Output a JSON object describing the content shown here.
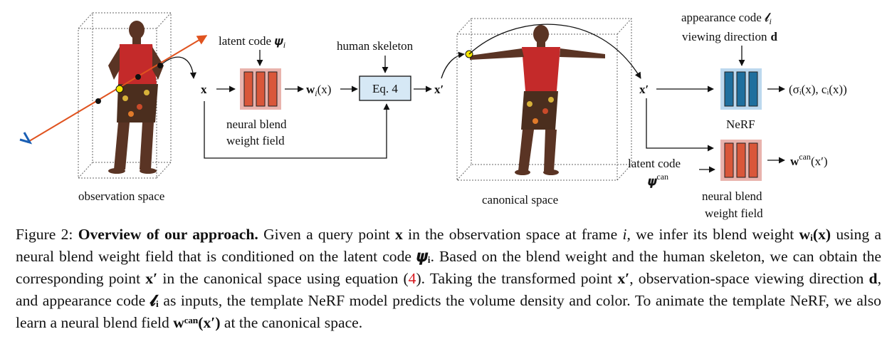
{
  "diagram": {
    "latent_code": "latent code 𝝍",
    "latent_code_sub": "i",
    "human_skeleton": "human skeleton",
    "eq_box": "Eq. 4",
    "x": "x",
    "w": "w",
    "w_sub": "i",
    "w_arg": "(x)",
    "x_prime": "x′",
    "nbwf_line1": "neural blend",
    "nbwf_line2": "weight field",
    "observation_space": "observation space",
    "canonical_space": "canonical space",
    "appearance_code": "appearance code 𝓵",
    "appearance_code_sub": "i",
    "viewing_direction": "viewing direction",
    "viewing_direction_var": "d",
    "nerf": "NeRF",
    "nerf_output": "(σᵢ(x), cᵢ(x))",
    "latent_code_can_line1": "latent code",
    "latent_code_can_line2": "𝝍",
    "latent_code_can_sup": "can",
    "wcan": "w",
    "wcan_sup": "can",
    "wcan_arg": "(x′)",
    "nbwf2_line1": "neural blend",
    "nbwf2_line2": "weight field"
  },
  "caption": {
    "label": "Figure 2:",
    "title": "Overview of our approach.",
    "s1": "Given a query point",
    "x": "x",
    "s2": "in the observation space at frame",
    "i": "i",
    "s3": ", we infer its blend weight",
    "wi": "wᵢ(x)",
    "s4": "using a neural blend weight field that is conditioned on the latent code",
    "psi": "𝝍ᵢ",
    "s5": ". Based on the blend weight and the human skeleton, we can obtain the corresponding point",
    "xprime": "x′",
    "s6": "in the canonical space using equation (",
    "ref": "4",
    "s7": "). Taking the transformed point",
    "xprime2": "x′",
    "s8": ", observation-space viewing direction",
    "d": "d",
    "s9": ", and appearance code",
    "ell": "𝓵ᵢ",
    "s10": "as inputs, the template NeRF model predicts the volume density and color. To animate the template NeRF, we also learn a neural blend field",
    "wcan": "wᶜᵃⁿ(x′)",
    "s11": "at the canonical space."
  }
}
